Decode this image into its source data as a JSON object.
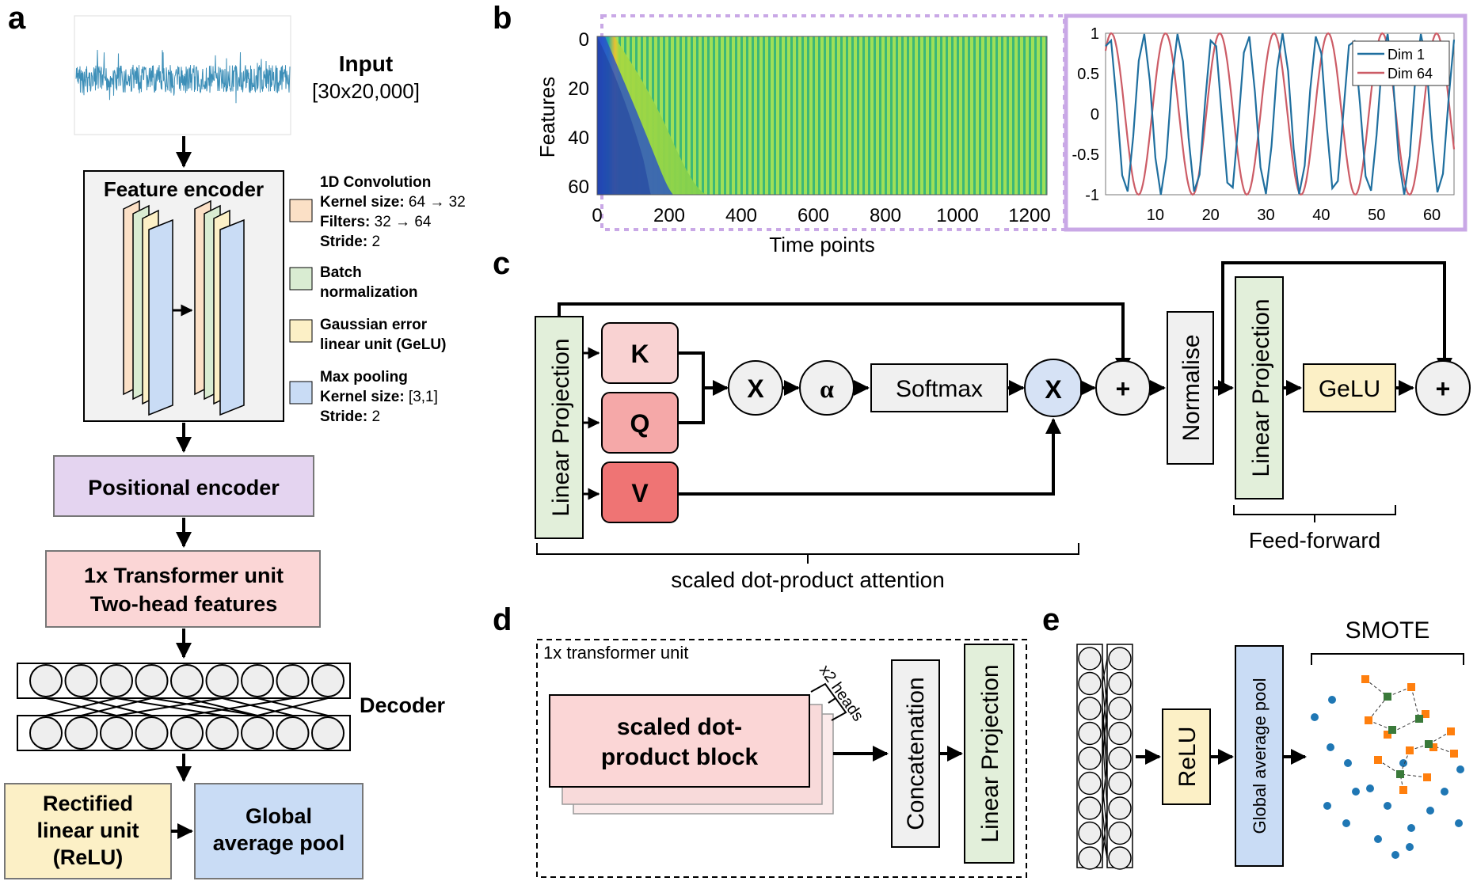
{
  "panels": {
    "a": "a",
    "b": "b",
    "c": "c",
    "d": "d",
    "e": "e"
  },
  "colors": {
    "conv_orange": "#fbe0c6",
    "bn_green": "#d9ecd2",
    "gelu_yellow": "#fcf0c6",
    "pool_blue": "#c9dcf5",
    "pos_purple": "#e4d4f0",
    "transformer_pink": "#fbd6d6",
    "relu_yellow": "#fcf0c6",
    "gap_blue": "#c9dcf5",
    "k_pink": "#f9d2d2",
    "q_pink": "#f5a8a8",
    "v_red": "#ef7474",
    "node_grey": "#f0f0f0",
    "x_blue": "#d6e2f5",
    "proj_green": "#e2efda",
    "dot_blue": "#1f77b4",
    "smote_orange": "#ff7f0e",
    "smote_green": "#3a7a3a",
    "dim1_color": "#1f6f9f",
    "dim64_color": "#cc5c66",
    "dashed_purple": "#c9a8e6"
  },
  "panel_a": {
    "input_title": "Input",
    "input_dims": "[30x20,000]",
    "feature_encoder": "Feature encoder",
    "legend": [
      {
        "bold": "1D Convolution",
        "lines": [
          {
            "b": "Kernel size:",
            "t": " 64 → 32"
          },
          {
            "b": "Filters:",
            "t": " 32 → 64"
          },
          {
            "b": "Stride:",
            "t": " 2"
          }
        ]
      },
      {
        "bold": "Batch",
        "lines": [
          {
            "b": "normalization",
            "t": ""
          }
        ]
      },
      {
        "bold": "Gaussian error",
        "lines": [
          {
            "b": "linear unit (GeLU)",
            "t": ""
          }
        ]
      },
      {
        "bold": "Max pooling",
        "lines": [
          {
            "b": "Kernel size:",
            "t": " [3,1]"
          },
          {
            "b": "Stride:",
            "t": " 2"
          }
        ]
      }
    ],
    "positional_encoder": "Positional encoder",
    "transformer_line1": "1x Transformer unit",
    "transformer_line2": "Two-head features",
    "decoder": "Decoder",
    "relu_line1": "Rectified",
    "relu_line2": "linear unit",
    "relu_line3": "(ReLU)",
    "gap_line1": "Global",
    "gap_line2": "average pool"
  },
  "panel_b": {
    "ylabel": "Features",
    "xlabel": "Time points",
    "heatmap_yticks": [
      "0",
      "20",
      "40",
      "60"
    ],
    "heatmap_xticks": [
      "0",
      "200",
      "400",
      "600",
      "800",
      "1000",
      "1200"
    ]
  },
  "chart_data": {
    "type": "line",
    "x_range": [
      1,
      64
    ],
    "ylim": [
      -1,
      1
    ],
    "xticks": [
      "10",
      "20",
      "30",
      "40",
      "50",
      "60"
    ],
    "yticks": [
      "1",
      "0.5",
      "0",
      "-0.5",
      "-1"
    ],
    "legend_position": "top-right",
    "series": [
      {
        "name": "Dim 1",
        "period_samples": 6.28,
        "values": [
          0.84,
          0.91,
          0.14,
          -0.76,
          -0.96,
          -0.28,
          0.66,
          0.99,
          0.41,
          -0.54,
          -1.0,
          -0.54,
          0.42,
          0.99,
          0.65,
          -0.29,
          -0.96,
          -0.75,
          0.15,
          0.91,
          0.84,
          -0.01,
          -0.85,
          -0.91,
          -0.13,
          0.76,
          0.96,
          0.27,
          -0.66,
          -0.99,
          -0.4,
          0.55,
          1.0,
          0.53,
          -0.43,
          -0.99,
          -0.64,
          0.3,
          0.96,
          0.75,
          -0.16,
          -0.92,
          -0.83,
          0.02,
          0.85,
          0.9,
          0.12,
          -0.77,
          -0.95,
          -0.26,
          0.67,
          0.99,
          0.4,
          -0.56,
          -1.0,
          -0.52,
          0.44,
          0.99,
          0.64,
          -0.3,
          -0.97,
          -0.74,
          0.17,
          0.92
        ]
      },
      {
        "name": "Dim 64",
        "period_samples": 9.8
      }
    ]
  },
  "panel_c": {
    "linear_projection": "Linear Projection",
    "k": "K",
    "q": "Q",
    "v": "V",
    "x1": "X",
    "alpha": "α",
    "softmax": "Softmax",
    "x2": "X",
    "plus1": "+",
    "normalise": "Normalise",
    "linear_projection2": "Linear Projection",
    "gelu": "GeLU",
    "plus2": "+",
    "feed_forward": "Feed-forward",
    "sdpa": "scaled  dot-product  attention"
  },
  "panel_d": {
    "unit_label": "1x transformer unit",
    "block_line1": "scaled dot-",
    "block_line2": "product block",
    "heads": "x2 heads",
    "concatenation": "Concatenation",
    "linear_projection": "Linear Projection"
  },
  "panel_e": {
    "relu": "ReLU",
    "gap": "Global average pool",
    "smote": "SMOTE"
  }
}
